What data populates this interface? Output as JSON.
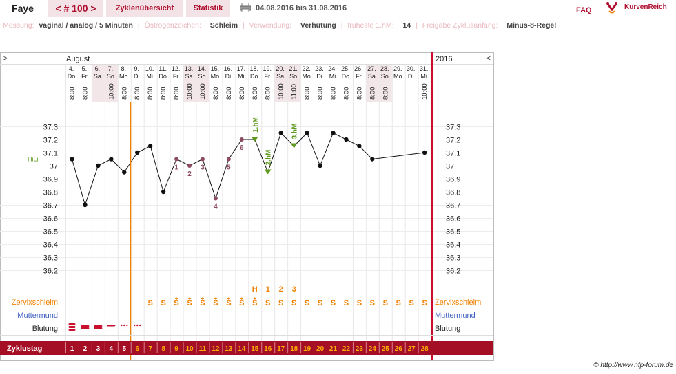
{
  "header": {
    "name": "Faye",
    "cycle_number": "< # 100 >",
    "tab_overview": "Zyklenübersicht",
    "tab_stats": "Statistik",
    "date_range": "04.08.2016 bis 31.08.2016",
    "faq": "FAQ",
    "logo_text": "KurvenReich"
  },
  "info": [
    {
      "label": "Messung:",
      "value": "vaginal / analog / 5 Minuten"
    },
    {
      "label": "Östrogenzeichen:",
      "value": "Schleim"
    },
    {
      "label": "Verwendung:",
      "value": "Verhütung"
    },
    {
      "label": "früheste 1.hM:",
      "value": "14"
    },
    {
      "label": "Freigabe Zyklusanfang:",
      "value": "Minus-8-Regel"
    }
  ],
  "colors": {
    "brand": "#a50f25",
    "tab_bg": "#f3e3e6",
    "orange": "#f08000",
    "green": "#5e9a1f",
    "mauve": "#8a4c5e",
    "blue": "#4060c0",
    "grid": "#e8e8e8",
    "weekend": "#f3e6e9"
  },
  "chart_data": {
    "type": "line",
    "month": "August",
    "year": "2016",
    "nav_left": ">",
    "nav_right": "<",
    "days": [
      {
        "date": "4.",
        "wd": "Do",
        "time": "8:00",
        "we": false
      },
      {
        "date": "5.",
        "wd": "Fr",
        "time": "8:00",
        "we": false
      },
      {
        "date": "6.",
        "wd": "Sa",
        "time": "",
        "we": true
      },
      {
        "date": "7.",
        "wd": "So",
        "time": "10:00",
        "we": true
      },
      {
        "date": "8.",
        "wd": "Mo",
        "time": "8:00",
        "we": false
      },
      {
        "date": "9.",
        "wd": "Di",
        "time": "8:00",
        "we": false
      },
      {
        "date": "10.",
        "wd": "Mi",
        "time": "8:00",
        "we": false
      },
      {
        "date": "11.",
        "wd": "Do",
        "time": "8:00",
        "we": false
      },
      {
        "date": "12.",
        "wd": "Fr",
        "time": "8:00",
        "we": false
      },
      {
        "date": "13.",
        "wd": "Sa",
        "time": "10:00",
        "we": true
      },
      {
        "date": "14.",
        "wd": "So",
        "time": "10:00",
        "we": true
      },
      {
        "date": "15.",
        "wd": "Mo",
        "time": "8:00",
        "we": false
      },
      {
        "date": "16.",
        "wd": "Di",
        "time": "8:00",
        "we": false
      },
      {
        "date": "17.",
        "wd": "Mi",
        "time": "8:00",
        "we": false
      },
      {
        "date": "18.",
        "wd": "Do",
        "time": "8:00",
        "we": false
      },
      {
        "date": "19.",
        "wd": "Fr",
        "time": "8:00",
        "we": false
      },
      {
        "date": "20.",
        "wd": "Sa",
        "time": "10:00",
        "we": true
      },
      {
        "date": "21.",
        "wd": "So",
        "time": "11:00",
        "we": true
      },
      {
        "date": "22.",
        "wd": "Mo",
        "time": "8:00",
        "we": false
      },
      {
        "date": "23.",
        "wd": "Di",
        "time": "8:00",
        "we": false
      },
      {
        "date": "24.",
        "wd": "Mi",
        "time": "8:00",
        "we": false
      },
      {
        "date": "25.",
        "wd": "Do",
        "time": "8:00",
        "we": false
      },
      {
        "date": "26.",
        "wd": "Fr",
        "time": "8:00",
        "we": false
      },
      {
        "date": "27.",
        "wd": "Sa",
        "time": "8:00",
        "we": true
      },
      {
        "date": "28.",
        "wd": "So",
        "time": "8:00",
        "we": true
      },
      {
        "date": "29.",
        "wd": "Mo",
        "time": "",
        "we": false
      },
      {
        "date": "30.",
        "wd": "Di",
        "time": "",
        "we": false
      },
      {
        "date": "31.",
        "wd": "Mi",
        "time": "10:00",
        "we": false
      }
    ],
    "temperatures": [
      37.05,
      36.7,
      37.0,
      37.05,
      36.95,
      37.1,
      37.15,
      36.8,
      37.05,
      37.0,
      37.05,
      36.75,
      37.05,
      37.2,
      37.2,
      36.95,
      37.25,
      37.15,
      37.25,
      37.0,
      37.25,
      37.2,
      37.15,
      37.05,
      null,
      null,
      null,
      37.1
    ],
    "low_labels": [
      {
        "day": 8,
        "text": "1"
      },
      {
        "day": 9,
        "text": "2"
      },
      {
        "day": 10,
        "text": "3"
      },
      {
        "day": 11,
        "text": "4"
      },
      {
        "day": 12,
        "text": "5"
      },
      {
        "day": 13,
        "text": "6"
      }
    ],
    "high_labels": [
      {
        "day": 14,
        "text": "1.hM"
      },
      {
        "day": 15,
        "text": "2.hM"
      },
      {
        "day": 17,
        "text": "3.hM"
      }
    ],
    "y_ticks": [
      "37.3",
      "37.2",
      "37.1",
      "37",
      "36.9",
      "36.8",
      "36.7",
      "36.6",
      "36.5",
      "36.4",
      "36.3",
      "36.2"
    ],
    "ylim": [
      36.2,
      37.3
    ],
    "hilo_label": "HiLi",
    "hilo_value": 37.05,
    "cervix_markers": [
      {
        "day": 14,
        "text": "H"
      },
      {
        "day": 15,
        "text": "1"
      },
      {
        "day": 16,
        "text": "2"
      },
      {
        "day": 17,
        "text": "3"
      }
    ],
    "rows": {
      "cervix_label": "Zervixschleim",
      "os_label": "Muttermund",
      "bleeding_label": "Blutung",
      "cycle_label": "Zyklustag"
    },
    "cervix": [
      "",
      "",
      "",
      "",
      "",
      "",
      "S",
      "S",
      "S+",
      "S+",
      "S+",
      "S+",
      "S+",
      "S+",
      "S+",
      "S",
      "S",
      "S",
      "S",
      "S",
      "S",
      "S",
      "S",
      "S",
      "S",
      "S",
      "S",
      "S"
    ],
    "bleeding": [
      "heavy",
      "medium",
      "medium",
      "light",
      "spot",
      "spot",
      "",
      "",
      "",
      "",
      "",
      "",
      "",
      "",
      "",
      "",
      "",
      "",
      "",
      "",
      "",
      "",
      "",
      "",
      "",
      "",
      "",
      ""
    ],
    "cycle_days": [
      "1",
      "2",
      "3",
      "4",
      "5",
      "6",
      "7",
      "8",
      "9",
      "10",
      "11",
      "12",
      "13",
      "14",
      "15",
      "16",
      "17",
      "18",
      "19",
      "20",
      "21",
      "22",
      "23",
      "24",
      "25",
      "26",
      "27",
      "28"
    ]
  },
  "copyright": "© http://www.nfp-forum.de"
}
